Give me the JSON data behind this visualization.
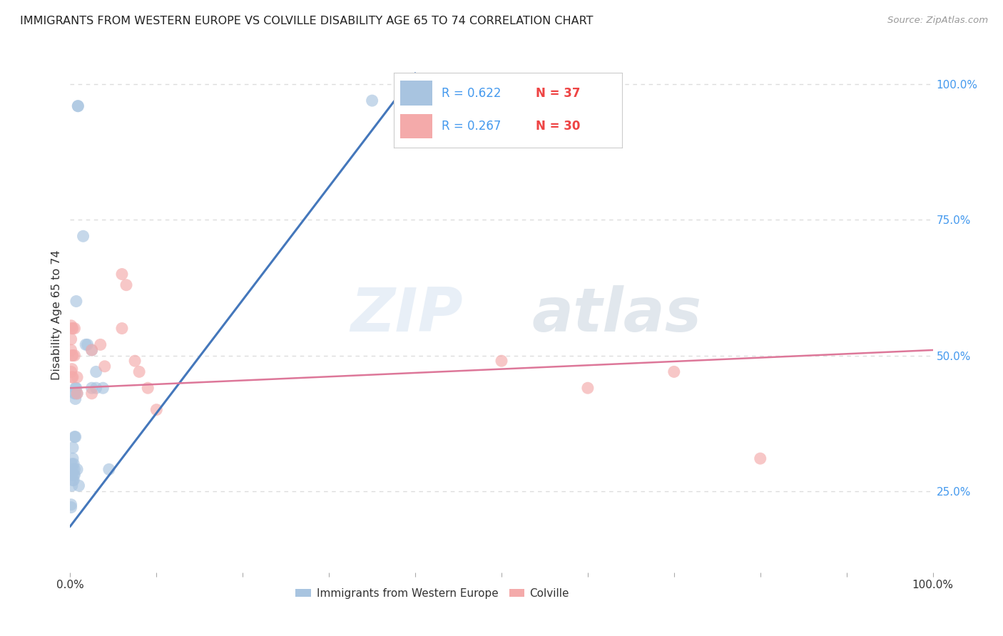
{
  "title": "IMMIGRANTS FROM WESTERN EUROPE VS COLVILLE DISABILITY AGE 65 TO 74 CORRELATION CHART",
  "source": "Source: ZipAtlas.com",
  "ylabel": "Disability Age 65 to 74",
  "legend_label1": "Immigrants from Western Europe",
  "legend_label2": "Colville",
  "R1": "0.622",
  "N1": "37",
  "R2": "0.267",
  "N2": "30",
  "blue_color": "#A8C4E0",
  "pink_color": "#F4AAAA",
  "blue_line_color": "#4477BB",
  "pink_line_color": "#DD7799",
  "blue_scatter": [
    [
      0.001,
      0.225
    ],
    [
      0.001,
      0.22
    ],
    [
      0.002,
      0.26
    ],
    [
      0.002,
      0.3
    ],
    [
      0.002,
      0.28
    ],
    [
      0.003,
      0.27
    ],
    [
      0.003,
      0.31
    ],
    [
      0.003,
      0.33
    ],
    [
      0.003,
      0.29
    ],
    [
      0.004,
      0.27
    ],
    [
      0.004,
      0.3
    ],
    [
      0.004,
      0.28
    ],
    [
      0.005,
      0.43
    ],
    [
      0.005,
      0.35
    ],
    [
      0.005,
      0.29
    ],
    [
      0.005,
      0.28
    ],
    [
      0.006,
      0.35
    ],
    [
      0.006,
      0.43
    ],
    [
      0.006,
      0.44
    ],
    [
      0.006,
      0.42
    ],
    [
      0.007,
      0.6
    ],
    [
      0.007,
      0.44
    ],
    [
      0.008,
      0.29
    ],
    [
      0.008,
      0.43
    ],
    [
      0.009,
      0.96
    ],
    [
      0.009,
      0.96
    ],
    [
      0.01,
      0.26
    ],
    [
      0.015,
      0.72
    ],
    [
      0.018,
      0.52
    ],
    [
      0.02,
      0.52
    ],
    [
      0.025,
      0.51
    ],
    [
      0.025,
      0.44
    ],
    [
      0.03,
      0.47
    ],
    [
      0.03,
      0.44
    ],
    [
      0.038,
      0.44
    ],
    [
      0.045,
      0.29
    ],
    [
      0.35,
      0.97
    ]
  ],
  "pink_scatter": [
    [
      0.001,
      0.555
    ],
    [
      0.001,
      0.53
    ],
    [
      0.001,
      0.51
    ],
    [
      0.001,
      0.47
    ],
    [
      0.002,
      0.55
    ],
    [
      0.002,
      0.5
    ],
    [
      0.002,
      0.475
    ],
    [
      0.002,
      0.46
    ],
    [
      0.003,
      0.55
    ],
    [
      0.003,
      0.5
    ],
    [
      0.003,
      0.46
    ],
    [
      0.005,
      0.55
    ],
    [
      0.005,
      0.5
    ],
    [
      0.008,
      0.46
    ],
    [
      0.008,
      0.43
    ],
    [
      0.025,
      0.43
    ],
    [
      0.025,
      0.51
    ],
    [
      0.035,
      0.52
    ],
    [
      0.04,
      0.48
    ],
    [
      0.06,
      0.65
    ],
    [
      0.06,
      0.55
    ],
    [
      0.065,
      0.63
    ],
    [
      0.075,
      0.49
    ],
    [
      0.08,
      0.47
    ],
    [
      0.09,
      0.44
    ],
    [
      0.1,
      0.4
    ],
    [
      0.5,
      0.49
    ],
    [
      0.6,
      0.44
    ],
    [
      0.7,
      0.47
    ],
    [
      0.8,
      0.31
    ]
  ],
  "blue_line_x": [
    0.0,
    0.4
  ],
  "blue_line_y": [
    0.185,
    1.02
  ],
  "pink_line_x": [
    0.0,
    1.0
  ],
  "pink_line_y": [
    0.44,
    0.51
  ],
  "watermark_zip": "ZIP",
  "watermark_atlas": "atlas",
  "background_color": "#FFFFFF",
  "grid_color": "#DDDDDD",
  "xlim": [
    0.0,
    1.0
  ],
  "ylim": [
    0.1,
    1.05
  ],
  "yticks": [
    0.25,
    0.5,
    0.75,
    1.0
  ],
  "xtick_positions": [
    0.0,
    0.1,
    0.2,
    0.3,
    0.4,
    0.5,
    0.6,
    0.7,
    0.8,
    0.9,
    1.0
  ],
  "xtick_labels_show": [
    "0.0%",
    "",
    "",
    "",
    "",
    "",
    "",
    "",
    "",
    "",
    "100.0%"
  ]
}
